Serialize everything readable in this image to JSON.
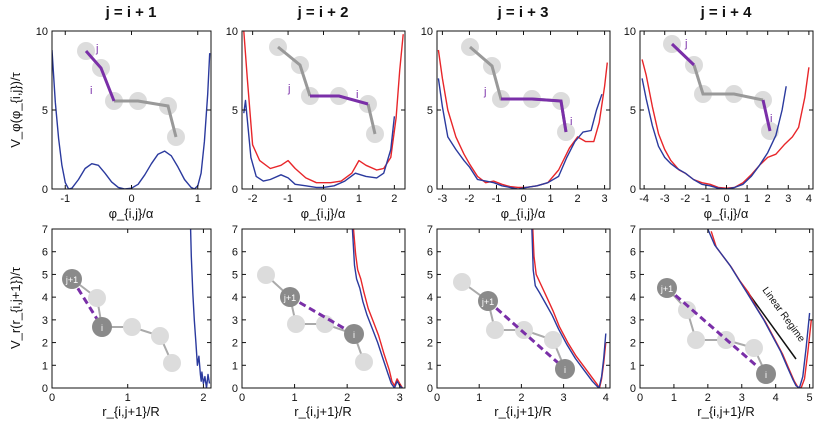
{
  "chart_data": [
    {
      "panel": "top-1",
      "type": "line",
      "title": "j = i + 1",
      "xlabel": "φ_{i,j}/α",
      "ylabel": "V_φ(φ_{i,j})/τ",
      "xlim": [
        -1.2,
        1.2
      ],
      "ylim": [
        0,
        10
      ],
      "xticks": [
        -1,
        0,
        1
      ],
      "yticks": [
        0,
        5,
        10
      ],
      "series": [
        {
          "color": "#2b3a9e",
          "x": [
            -1.2,
            -1.15,
            -1.1,
            -1.05,
            -1.0,
            -0.95,
            -0.9,
            -0.8,
            -0.7,
            -0.6,
            -0.5,
            -0.4,
            -0.3,
            -0.2,
            -0.1,
            0.0,
            0.1,
            0.2,
            0.3,
            0.4,
            0.5,
            0.6,
            0.7,
            0.8,
            0.9,
            0.95,
            1.0,
            1.05,
            1.1,
            1.15,
            1.18
          ],
          "y": [
            8.8,
            5.5,
            3.2,
            1.5,
            0.4,
            0.0,
            0.05,
            0.6,
            1.3,
            1.6,
            1.5,
            1.0,
            0.45,
            0.1,
            0.0,
            0.05,
            0.3,
            0.9,
            1.6,
            2.2,
            2.4,
            2.1,
            1.4,
            0.6,
            0.1,
            0.0,
            0.2,
            1.0,
            3.0,
            6.0,
            8.6
          ]
        }
      ]
    },
    {
      "panel": "top-2",
      "type": "line",
      "title": "j = i + 2",
      "xlabel": "φ_{i,j}/α",
      "ylabel": "",
      "xlim": [
        -2.3,
        2.3
      ],
      "ylim": [
        0,
        10
      ],
      "xticks": [
        -2,
        -1,
        0,
        1,
        2
      ],
      "yticks": [
        0,
        5,
        10
      ],
      "series": [
        {
          "color": "#e8262a",
          "x": [
            -2.25,
            -2.15,
            -2.0,
            -1.8,
            -1.5,
            -1.2,
            -1.0,
            -0.8,
            -0.5,
            -0.2,
            0.0,
            0.2,
            0.5,
            0.8,
            1.0,
            1.2,
            1.5,
            1.7,
            1.9,
            2.05,
            2.15,
            2.25
          ],
          "y": [
            10,
            7.0,
            2.8,
            1.8,
            1.3,
            1.5,
            1.8,
            1.3,
            0.7,
            0.4,
            0.4,
            0.4,
            0.5,
            1.0,
            1.8,
            1.5,
            1.2,
            1.3,
            2.0,
            4.5,
            7.5,
            9.8
          ]
        },
        {
          "color": "#2b3a9e",
          "x": [
            -2.25,
            -2.2,
            -2.05,
            -1.9,
            -1.7,
            -1.5,
            -1.2,
            -1.0,
            -0.8,
            -0.5,
            -0.2,
            0.0,
            0.3,
            0.6,
            0.9,
            1.2,
            1.5,
            1.7,
            1.9,
            2.0
          ],
          "y": [
            4.8,
            5.6,
            2.0,
            0.8,
            0.5,
            0.6,
            0.9,
            0.7,
            0.3,
            0.2,
            0.1,
            0.1,
            0.2,
            0.5,
            1.0,
            0.8,
            0.7,
            1.0,
            2.5,
            4.6
          ]
        }
      ]
    },
    {
      "panel": "top-3",
      "type": "line",
      "title": "j = i + 3",
      "xlabel": "φ_{i,j}/α",
      "ylabel": "",
      "xlim": [
        -3.2,
        3.2
      ],
      "ylim": [
        0,
        10
      ],
      "xticks": [
        -3,
        -2,
        -1,
        0,
        1,
        2,
        3
      ],
      "yticks": [
        0,
        5,
        10
      ],
      "series": [
        {
          "color": "#e8262a",
          "x": [
            -3.15,
            -3.0,
            -2.8,
            -2.5,
            -2.2,
            -2.0,
            -1.7,
            -1.4,
            -1.1,
            -0.8,
            -0.5,
            -0.2,
            0.1,
            0.5,
            0.9,
            1.3,
            1.7,
            2.0,
            2.3,
            2.6,
            2.8,
            3.0,
            3.1
          ],
          "y": [
            8.8,
            7.0,
            5.0,
            3.3,
            2.2,
            1.6,
            0.8,
            0.4,
            0.5,
            0.3,
            0.15,
            0.1,
            0.1,
            0.2,
            0.4,
            1.2,
            2.6,
            3.3,
            3.0,
            3.0,
            4.2,
            6.5,
            8.0
          ]
        },
        {
          "color": "#2b3a9e",
          "x": [
            -3.15,
            -3.0,
            -2.8,
            -2.5,
            -2.2,
            -2.0,
            -1.7,
            -1.4,
            -1.1,
            -0.8,
            -0.5,
            -0.2,
            0.1,
            0.5,
            0.9,
            1.3,
            1.6,
            1.9,
            2.2,
            2.5,
            2.7,
            2.9
          ],
          "y": [
            7.0,
            5.2,
            3.3,
            2.5,
            1.8,
            1.4,
            0.6,
            0.5,
            0.4,
            0.2,
            0.1,
            0.0,
            0.1,
            0.2,
            0.4,
            0.8,
            2.0,
            3.0,
            3.6,
            3.7,
            5.0,
            6.0
          ]
        }
      ]
    },
    {
      "panel": "top-4",
      "type": "line",
      "title": "j = i + 4",
      "xlabel": "φ_{i,j}/α",
      "ylabel": "",
      "xlim": [
        -4.2,
        4.2
      ],
      "ylim": [
        0,
        10
      ],
      "xticks": [
        -4,
        -3,
        -2,
        -1,
        0,
        1,
        2,
        3,
        4
      ],
      "yticks": [
        0,
        5,
        10
      ],
      "series": [
        {
          "color": "#e8262a",
          "x": [
            -4.1,
            -3.9,
            -3.6,
            -3.3,
            -3.0,
            -2.7,
            -2.3,
            -2.0,
            -1.6,
            -1.2,
            -0.8,
            -0.4,
            0.0,
            0.4,
            0.8,
            1.2,
            1.6,
            2.0,
            2.4,
            2.8,
            3.2,
            3.5,
            3.8,
            4.0
          ],
          "y": [
            8.2,
            7.2,
            5.2,
            3.5,
            2.5,
            1.8,
            1.2,
            1.0,
            0.6,
            0.4,
            0.3,
            0.1,
            0.05,
            0.1,
            0.4,
            0.9,
            1.5,
            2.0,
            2.2,
            2.8,
            3.3,
            3.9,
            5.8,
            7.7
          ]
        },
        {
          "color": "#2b3a9e",
          "x": [
            -4.1,
            -3.9,
            -3.6,
            -3.3,
            -3.0,
            -2.7,
            -2.4,
            -2.0,
            -1.6,
            -1.2,
            -0.8,
            -0.4,
            0.0,
            0.4,
            0.8,
            1.2,
            1.6,
            2.0,
            2.4,
            2.7,
            2.9
          ],
          "y": [
            7.0,
            5.7,
            4.0,
            2.7,
            2.0,
            1.6,
            1.3,
            1.0,
            0.6,
            0.3,
            0.2,
            0.05,
            0.0,
            0.1,
            0.3,
            0.8,
            1.5,
            2.3,
            3.4,
            5.0,
            6.5
          ]
        }
      ]
    },
    {
      "panel": "bottom-1",
      "type": "line",
      "title": "",
      "xlabel": "r_{i,j+1}/R",
      "ylabel": "V_r(r_{i,j+1})/τ",
      "xlim": [
        0,
        2.1
      ],
      "ylim": [
        0,
        7
      ],
      "xticks": [
        0,
        1,
        2
      ],
      "yticks": [
        0,
        1,
        2,
        3,
        4,
        5,
        6,
        7
      ],
      "series": [
        {
          "color": "#2b3a9e",
          "x": [
            1.83,
            1.84,
            1.86,
            1.88,
            1.9,
            1.92,
            1.94,
            1.96,
            1.97,
            1.98,
            2.0,
            2.02,
            2.04,
            2.06,
            2.08
          ],
          "y": [
            7.0,
            5.8,
            4.2,
            3.0,
            2.0,
            1.0,
            1.4,
            0.6,
            0.3,
            0.7,
            0.2,
            0.5,
            0.0,
            0.6,
            0.2
          ]
        }
      ]
    },
    {
      "panel": "bottom-2",
      "type": "line",
      "title": "",
      "xlabel": "r_{i,j+1}/R",
      "ylabel": "",
      "xlim": [
        0,
        3.1
      ],
      "ylim": [
        0,
        7
      ],
      "xticks": [
        0,
        1,
        2,
        3
      ],
      "yticks": [
        0,
        1,
        2,
        3,
        4,
        5,
        6,
        7
      ],
      "series": [
        {
          "color": "#e8262a",
          "x": [
            2.12,
            2.16,
            2.2,
            2.26,
            2.32,
            2.4,
            2.5,
            2.6,
            2.7,
            2.8,
            2.85,
            2.9,
            2.95,
            3.0,
            3.05
          ],
          "y": [
            7.0,
            5.9,
            5.2,
            4.8,
            4.2,
            3.5,
            2.9,
            2.3,
            1.5,
            0.8,
            0.3,
            0.1,
            0.4,
            0.2,
            0.0
          ]
        },
        {
          "color": "#2b3a9e",
          "x": [
            2.1,
            2.14,
            2.18,
            2.24,
            2.3,
            2.38,
            2.48,
            2.58,
            2.68,
            2.78,
            2.84,
            2.9,
            2.95,
            3.0,
            3.05
          ],
          "y": [
            7.0,
            5.4,
            4.8,
            4.4,
            3.8,
            3.2,
            2.6,
            2.0,
            1.3,
            0.6,
            0.2,
            0.0,
            0.3,
            0.1,
            0.0
          ]
        }
      ]
    },
    {
      "panel": "bottom-3",
      "type": "line",
      "title": "",
      "xlabel": "r_{i,j+1}/R",
      "ylabel": "",
      "xlim": [
        0,
        4.1
      ],
      "ylim": [
        0,
        7
      ],
      "xticks": [
        0,
        1,
        2,
        3,
        4
      ],
      "yticks": [
        0,
        1,
        2,
        3,
        4,
        5,
        6,
        7
      ],
      "series": [
        {
          "color": "#e8262a",
          "x": [
            2.27,
            2.3,
            2.35,
            2.45,
            2.6,
            2.75,
            2.9,
            3.1,
            3.3,
            3.5,
            3.7,
            3.8,
            3.85,
            3.9,
            3.95,
            4.0
          ],
          "y": [
            7.0,
            5.8,
            5.0,
            4.6,
            4.0,
            3.4,
            2.7,
            2.0,
            1.4,
            0.9,
            0.4,
            0.15,
            0.0,
            0.4,
            1.1,
            2.0
          ]
        },
        {
          "color": "#2b3a9e",
          "x": [
            2.25,
            2.28,
            2.33,
            2.43,
            2.58,
            2.73,
            2.88,
            3.08,
            3.28,
            3.48,
            3.68,
            3.78,
            3.84,
            3.9,
            3.95,
            4.0
          ],
          "y": [
            7.0,
            5.2,
            4.5,
            4.2,
            3.7,
            3.2,
            2.6,
            1.9,
            1.3,
            0.8,
            0.3,
            0.1,
            0.0,
            0.5,
            1.3,
            2.4
          ]
        }
      ]
    },
    {
      "panel": "bottom-4",
      "type": "line",
      "title": "",
      "xlabel": "r_{i,j+1}/R",
      "ylabel": "",
      "xlim": [
        0,
        5.1
      ],
      "ylim": [
        0,
        7
      ],
      "xticks": [
        0,
        1,
        2,
        3,
        4,
        5
      ],
      "yticks": [
        0,
        1,
        2,
        3,
        4,
        5,
        6,
        7
      ],
      "series": [
        {
          "color": "#e8262a",
          "x": [
            2.1,
            2.25,
            2.45,
            2.7,
            2.95,
            3.2,
            3.45,
            3.7,
            3.95,
            4.2,
            4.4,
            4.55,
            4.65,
            4.75,
            4.85,
            4.95,
            5.05
          ],
          "y": [
            6.9,
            6.2,
            5.8,
            5.3,
            4.7,
            4.2,
            3.5,
            2.9,
            2.2,
            1.5,
            0.8,
            0.3,
            0.05,
            0.0,
            0.4,
            1.6,
            3.0
          ]
        },
        {
          "color": "#2b3a9e",
          "x": [
            2.0,
            2.2,
            2.4,
            2.65,
            2.9,
            3.15,
            3.4,
            3.65,
            3.9,
            4.15,
            4.35,
            4.5,
            4.6,
            4.7,
            4.8,
            4.9,
            5.0
          ],
          "y": [
            7.0,
            6.3,
            5.9,
            5.4,
            4.8,
            4.2,
            3.6,
            3.0,
            2.3,
            1.6,
            0.9,
            0.4,
            0.1,
            0.0,
            0.5,
            1.8,
            3.3
          ]
        }
      ],
      "annotation": "Linear Regime"
    }
  ],
  "inset_labels": {
    "top1_upper": "j",
    "top1_lower": "i",
    "top2_left": "j",
    "top2_right": "i",
    "top3_left": "j",
    "top3_right": "i",
    "top4_upper": "j",
    "top4_lower": "i",
    "bead_jp1": "j+1",
    "bead_i": "i"
  }
}
